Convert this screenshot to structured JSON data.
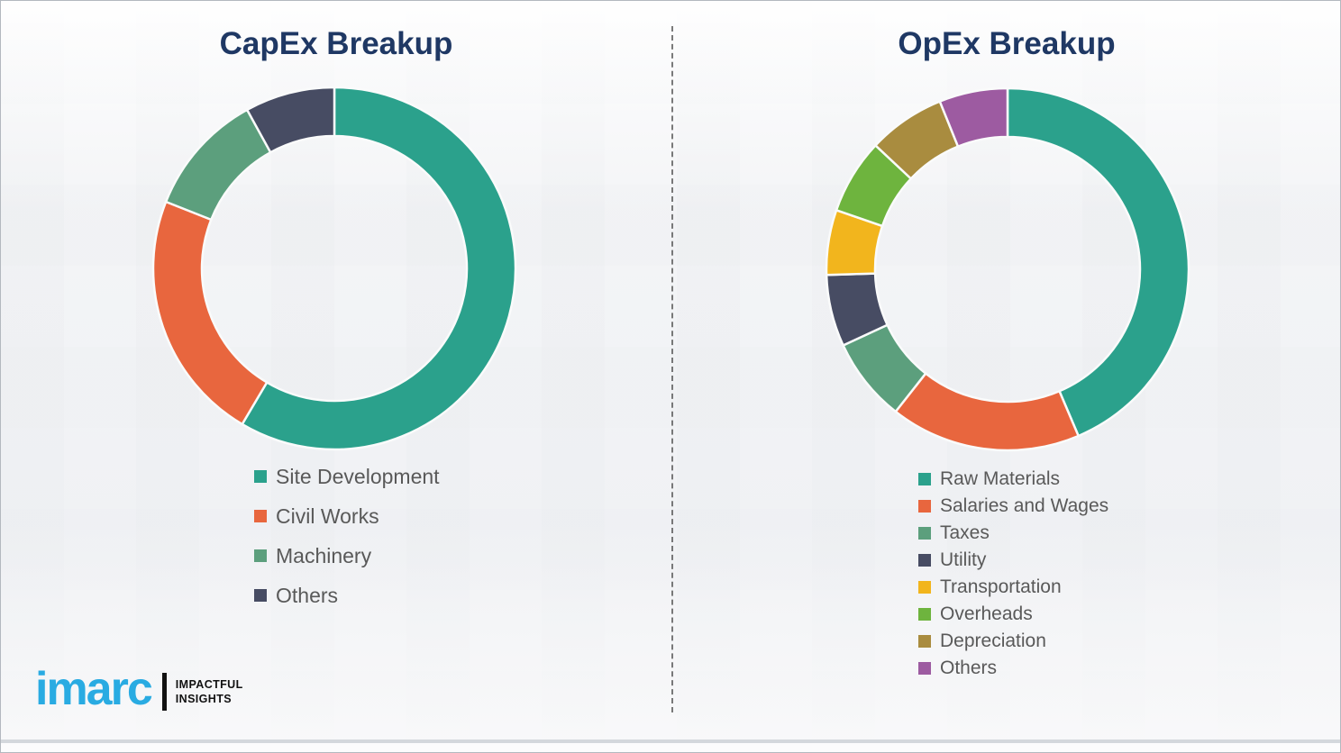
{
  "theme": {
    "title_color": "#1F3864",
    "legend_text_color": "#595959",
    "divider_color": "#4F4F4F",
    "background": "#F3F4F6",
    "wordmark_color": "#29ABE2"
  },
  "chart_data": [
    {
      "type": "pie",
      "subtype": "donut",
      "title": "CapEx Breakup",
      "direction": "clockwise",
      "start_angle_deg": 0,
      "inner_radius_ratio": 0.73,
      "legend_position": "bottom",
      "values_unit": "percent (estimated from arc angles)",
      "segments": [
        {
          "label": "Site Development",
          "value": 58.5,
          "color": "#2BA18C"
        },
        {
          "label": "Civil Works",
          "value": 22.5,
          "color": "#E8663E"
        },
        {
          "label": "Machinery",
          "value": 11.0,
          "color": "#5C9F7D"
        },
        {
          "label": "Others",
          "value": 8.0,
          "color": "#474C63"
        }
      ]
    },
    {
      "type": "pie",
      "subtype": "donut",
      "title": "OpEx Breakup",
      "direction": "clockwise",
      "start_angle_deg": 0,
      "inner_radius_ratio": 0.73,
      "legend_position": "bottom",
      "values_unit": "percent (estimated from arc angles)",
      "segments": [
        {
          "label": "Raw Materials",
          "value": 43.6,
          "color": "#2BA18C"
        },
        {
          "label": "Salaries and Wages",
          "value": 17.0,
          "color": "#E8663E"
        },
        {
          "label": "Taxes",
          "value": 7.5,
          "color": "#5C9F7D"
        },
        {
          "label": "Utility",
          "value": 6.4,
          "color": "#474C63"
        },
        {
          "label": "Transportation",
          "value": 5.8,
          "color": "#F2B51D"
        },
        {
          "label": "Overheads",
          "value": 6.7,
          "color": "#6EB43E"
        },
        {
          "label": "Depreciation",
          "value": 6.9,
          "color": "#A98C3F"
        },
        {
          "label": "Others",
          "value": 6.1,
          "color": "#9D5BA1"
        }
      ]
    }
  ],
  "brand": {
    "wordmark": "imarc",
    "tagline_line1": "IMPACTFUL",
    "tagline_line2": "INSIGHTS"
  }
}
